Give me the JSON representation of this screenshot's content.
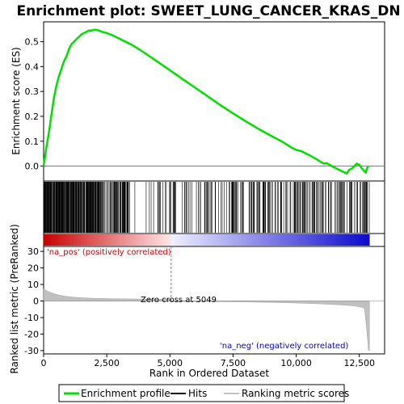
{
  "chart_data": [
    {
      "type": "line",
      "panel": "enrichment",
      "title": "Enrichment plot: SWEET_LUNG_CANCER_KRAS_DN",
      "ylabel": "Enrichment score (ES)",
      "ylim": [
        -0.06,
        0.58
      ],
      "yticks": [
        "0.0",
        "0.1",
        "0.2",
        "0.3",
        "0.4",
        "0.5"
      ],
      "ytick_values": [
        0.0,
        0.1,
        0.2,
        0.3,
        0.4,
        0.5
      ],
      "xlim": [
        0,
        13500
      ],
      "series": [
        {
          "name": "Enrichment profile",
          "color": "#00e000",
          "x": [
            0,
            100,
            200,
            300,
            400,
            500,
            600,
            700,
            800,
            900,
            1000,
            1100,
            1200,
            1300,
            1400,
            1500,
            1600,
            1700,
            1800,
            1900,
            2000,
            2100,
            2200,
            2300,
            2500,
            2700,
            3000,
            3500,
            4000,
            4500,
            5000,
            5500,
            6000,
            6500,
            7000,
            7500,
            8000,
            8500,
            9000,
            9500,
            9800,
            10000,
            10200,
            10500,
            10800,
            11000,
            11100,
            11200,
            11400,
            11600,
            11800,
            12000,
            12100,
            12200,
            12300,
            12400,
            12500,
            12600,
            12700,
            12750,
            12800,
            12850
          ],
          "y": [
            0.0,
            0.07,
            0.13,
            0.2,
            0.27,
            0.32,
            0.36,
            0.39,
            0.42,
            0.44,
            0.47,
            0.49,
            0.5,
            0.51,
            0.52,
            0.53,
            0.535,
            0.54,
            0.545,
            0.545,
            0.548,
            0.547,
            0.545,
            0.54,
            0.535,
            0.527,
            0.512,
            0.487,
            0.455,
            0.42,
            0.385,
            0.35,
            0.315,
            0.28,
            0.245,
            0.212,
            0.18,
            0.15,
            0.122,
            0.095,
            0.075,
            0.065,
            0.06,
            0.045,
            0.028,
            0.015,
            0.01,
            0.012,
            0.0,
            -0.01,
            -0.02,
            -0.03,
            -0.015,
            -0.01,
            0.0,
            0.01,
            0.005,
            -0.01,
            -0.02,
            -0.025,
            -0.01,
            0.0
          ]
        }
      ]
    },
    {
      "type": "ranked_metric",
      "panel": "ranking",
      "xlabel": "Rank in Ordered Dataset",
      "ylabel": "Ranked list metric (PreRanked)",
      "xlim": [
        0,
        13500
      ],
      "ylim": [
        -32,
        33
      ],
      "xticks": [
        "0",
        "2,500",
        "5,000",
        "7,500",
        "10,000",
        "12,500"
      ],
      "xtick_values": [
        0,
        2500,
        5000,
        7500,
        10000,
        12500
      ],
      "yticks": [
        "30",
        "20",
        "10",
        "0",
        "-10",
        "-20",
        "-30"
      ],
      "ytick_values": [
        30,
        20,
        10,
        0,
        -10,
        -20,
        -30
      ],
      "zero_cross": 5049,
      "zero_cross_label": "Zero cross at 5049",
      "pos_label": "'na_pos' (positively correlated)",
      "neg_label": "'na_neg' (negatively correlated)",
      "pos_color": "#cc0000",
      "neg_color": "#0000cc",
      "fill_color": "#c0c0c0",
      "n_genes": 12900
    }
  ],
  "legend": {
    "items": [
      {
        "label": "Enrichment profile",
        "color": "#00e000"
      },
      {
        "label": "Hits",
        "color": "#000000"
      },
      {
        "label": "Ranking metric scores",
        "color": "#c0c0c0"
      }
    ]
  }
}
